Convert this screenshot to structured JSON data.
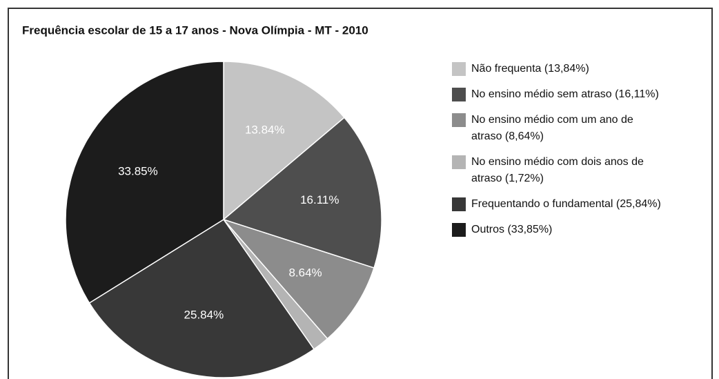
{
  "chart_data": {
    "type": "pie",
    "title": "Frequência escolar de 15 a 17 anos - Nova Olímpia - MT - 2010",
    "categories": [
      "Não frequenta (13,84%)",
      "No ensino médio sem atraso (16,11%)",
      "No ensino médio com um ano de atraso (8,64%)",
      "No ensino médio com dois anos de atraso (1,72%)",
      "Frequentando o fundamental (25,84%)",
      "Outros (33,85%)"
    ],
    "values": [
      13.84,
      16.11,
      8.64,
      1.72,
      25.84,
      33.85
    ],
    "value_labels": [
      "13.84%",
      "16.11%",
      "8.64%",
      null,
      "25.84%",
      "33.85%"
    ],
    "colors": [
      "#c4c4c4",
      "#4e4e4e",
      "#8c8c8c",
      "#b4b4b4",
      "#383838",
      "#1c1c1c"
    ],
    "legend": "right"
  }
}
